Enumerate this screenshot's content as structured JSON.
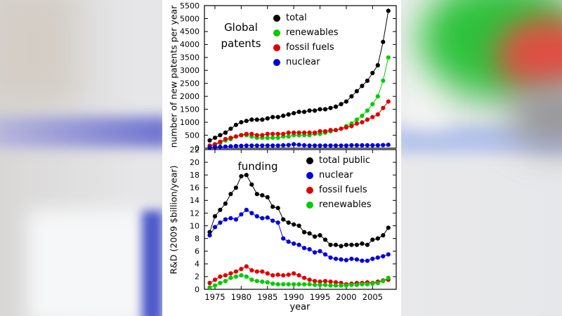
{
  "chart_data": [
    {
      "type": "line",
      "title": "Global patents",
      "ylabel": "number of new patents per year",
      "xlabel": "year",
      "ylim": [
        0,
        5500
      ],
      "ytick_step": 500,
      "xlim": [
        1973,
        2009.5
      ],
      "xticks": [
        1975,
        1980,
        1985,
        1990,
        1995,
        2000,
        2005
      ],
      "legend_position": "top-right-inside",
      "grid": false,
      "x": [
        1974,
        1975,
        1976,
        1977,
        1978,
        1979,
        1980,
        1981,
        1982,
        1983,
        1984,
        1985,
        1986,
        1987,
        1988,
        1989,
        1990,
        1991,
        1992,
        1993,
        1994,
        1995,
        1996,
        1997,
        1998,
        1999,
        2000,
        2001,
        2002,
        2003,
        2004,
        2005,
        2006,
        2007,
        2008
      ],
      "series": [
        {
          "name": "total",
          "color": "#000000",
          "values": [
            300,
            400,
            500,
            600,
            750,
            900,
            1000,
            1050,
            1100,
            1100,
            1100,
            1150,
            1200,
            1200,
            1250,
            1300,
            1350,
            1400,
            1400,
            1450,
            1450,
            1500,
            1500,
            1550,
            1600,
            1700,
            1800,
            2000,
            2200,
            2400,
            2600,
            2900,
            3200,
            4100,
            5300
          ]
        },
        {
          "name": "renewables",
          "color": "#00cc00",
          "values": [
            50,
            150,
            200,
            300,
            350,
            450,
            500,
            500,
            450,
            400,
            400,
            400,
            400,
            400,
            450,
            450,
            500,
            500,
            500,
            500,
            550,
            550,
            600,
            650,
            700,
            750,
            850,
            950,
            1100,
            1250,
            1450,
            1700,
            2000,
            2600,
            3500
          ]
        },
        {
          "name": "fossil fuels",
          "color": "#e00000",
          "values": [
            100,
            150,
            250,
            350,
            400,
            450,
            500,
            550,
            550,
            500,
            500,
            550,
            550,
            550,
            550,
            600,
            600,
            600,
            600,
            600,
            600,
            650,
            650,
            700,
            700,
            750,
            800,
            850,
            950,
            1000,
            1100,
            1200,
            1300,
            1550,
            1800
          ]
        },
        {
          "name": "nuclear",
          "color": "#0000dd",
          "values": [
            30,
            40,
            50,
            60,
            70,
            80,
            90,
            100,
            100,
            100,
            100,
            100,
            100,
            100,
            110,
            120,
            150,
            130,
            110,
            100,
            100,
            100,
            100,
            100,
            100,
            100,
            100,
            110,
            110,
            110,
            110,
            110,
            110,
            120,
            130
          ]
        }
      ]
    },
    {
      "type": "line",
      "title": "funding",
      "ylabel": "R&D (2009 $billion/year)",
      "xlabel": "year",
      "ylim": [
        0,
        22
      ],
      "ytick_step": 2,
      "xlim": [
        1973,
        2009.5
      ],
      "xticks": [
        1975,
        1980,
        1985,
        1990,
        1995,
        2000,
        2005
      ],
      "legend_position": "top-right-inside",
      "grid": false,
      "x": [
        1974,
        1975,
        1976,
        1977,
        1978,
        1979,
        1980,
        1981,
        1982,
        1983,
        1984,
        1985,
        1986,
        1987,
        1988,
        1989,
        1990,
        1991,
        1992,
        1993,
        1994,
        1995,
        1996,
        1997,
        1998,
        1999,
        2000,
        2001,
        2002,
        2003,
        2004,
        2005,
        2006,
        2007,
        2008
      ],
      "series": [
        {
          "name": "total public",
          "color": "#000000",
          "values": [
            9.0,
            11.5,
            12.5,
            13.5,
            15.0,
            16.0,
            17.8,
            18.0,
            16.5,
            15.0,
            14.8,
            14.5,
            13.0,
            12.8,
            11.0,
            10.5,
            10.2,
            10.0,
            9.0,
            8.8,
            8.3,
            8.5,
            7.8,
            7.0,
            7.0,
            6.8,
            7.0,
            7.0,
            7.0,
            7.2,
            7.0,
            7.8,
            8.0,
            8.5,
            9.7
          ]
        },
        {
          "name": "nuclear",
          "color": "#0000dd",
          "values": [
            8.5,
            9.8,
            10.5,
            11.0,
            11.2,
            11.0,
            11.8,
            12.5,
            12.0,
            11.5,
            11.2,
            11.3,
            10.8,
            10.5,
            8.0,
            7.5,
            7.2,
            7.0,
            6.5,
            6.3,
            5.8,
            6.0,
            5.5,
            5.0,
            4.8,
            4.7,
            4.6,
            4.8,
            4.7,
            4.5,
            4.5,
            4.8,
            5.0,
            5.2,
            5.5
          ]
        },
        {
          "name": "fossil fuels",
          "color": "#e00000",
          "values": [
            1.0,
            1.5,
            2.0,
            2.2,
            2.5,
            2.8,
            3.2,
            3.6,
            3.0,
            2.8,
            2.8,
            2.5,
            2.2,
            2.3,
            2.2,
            2.3,
            2.5,
            2.2,
            1.8,
            1.5,
            1.3,
            1.2,
            1.3,
            1.2,
            1.1,
            1.0,
            0.8,
            0.9,
            1.0,
            1.0,
            1.1,
            1.0,
            1.2,
            1.4,
            1.5
          ]
        },
        {
          "name": "renewables",
          "color": "#00cc00",
          "values": [
            0.3,
            0.6,
            1.0,
            1.3,
            1.8,
            2.0,
            2.2,
            2.0,
            1.5,
            1.3,
            1.2,
            1.1,
            0.9,
            0.8,
            0.8,
            0.8,
            0.8,
            0.8,
            0.8,
            0.8,
            0.7,
            0.7,
            0.7,
            0.6,
            0.6,
            0.6,
            0.6,
            0.7,
            0.7,
            0.8,
            0.8,
            0.9,
            1.0,
            1.3,
            1.8
          ]
        }
      ]
    }
  ]
}
